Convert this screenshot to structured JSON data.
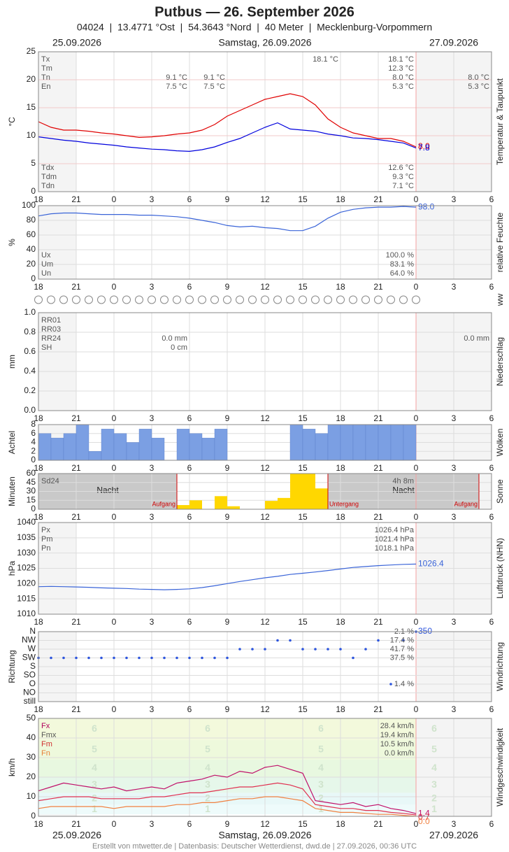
{
  "header": {
    "title": "Putbus  —  26. September 2026",
    "subtitle": "04024  |  13.4771 °Ost  |  54.3643 °Nord  |  40 Meter  |  Mecklenburg-Vorpommern",
    "dates": [
      "25.09.2026",
      "Samstag, 26.09.2026",
      "27.09.2026"
    ],
    "footer": "Erstellt von mtwetter.de | Datenbasis: Deutscher Wetterdienst, dwd.de | 27.09.2026, 00:36 UTC"
  },
  "x_axis": {
    "xlim": [
      0,
      36
    ],
    "xticks": [
      {
        "value": 0,
        "label": "18"
      },
      {
        "value": 3,
        "label": "21"
      },
      {
        "value": 6,
        "label": "0"
      },
      {
        "value": 9,
        "label": "3"
      },
      {
        "value": 12,
        "label": "6"
      },
      {
        "value": 15,
        "label": "9"
      },
      {
        "value": 18,
        "label": "12"
      },
      {
        "value": 21,
        "label": "15"
      },
      {
        "value": 24,
        "label": "18"
      },
      {
        "value": 27,
        "label": "21"
      },
      {
        "value": 30,
        "label": "0"
      },
      {
        "value": 33,
        "label": "3"
      },
      {
        "value": 36,
        "label": "6"
      }
    ]
  },
  "chart_data": [
    {
      "type": "line",
      "y_label": "°C",
      "right_label": "Temperatur & Taupunkt",
      "ylim": [
        0,
        25
      ],
      "yticks": [
        0,
        5,
        10,
        15,
        20,
        25
      ],
      "grid": true,
      "x": [
        0,
        1,
        2,
        3,
        4,
        5,
        6,
        7,
        8,
        9,
        10,
        11,
        12,
        13,
        14,
        15,
        16,
        17,
        18,
        19,
        20,
        21,
        22,
        23,
        24,
        25,
        26,
        27,
        28,
        29,
        30
      ],
      "series": [
        {
          "color": "#e00000",
          "end_label": "8.0",
          "values": [
            12.5,
            11.5,
            11.0,
            11.0,
            10.8,
            10.5,
            10.3,
            10.0,
            9.7,
            9.8,
            10.0,
            10.3,
            10.5,
            11.0,
            12.0,
            13.5,
            14.5,
            15.5,
            16.5,
            17.0,
            17.5,
            17.0,
            15.5,
            13.0,
            11.5,
            10.5,
            10.0,
            9.5,
            9.5,
            9.0,
            8.0
          ]
        },
        {
          "color": "#0000dd",
          "end_label": "7.8",
          "values": [
            9.8,
            9.5,
            9.2,
            9.0,
            8.7,
            8.5,
            8.3,
            8.0,
            7.8,
            7.6,
            7.5,
            7.3,
            7.2,
            7.5,
            8.0,
            8.8,
            9.5,
            10.5,
            11.5,
            12.3,
            11.2,
            11.0,
            10.8,
            10.3,
            10.0,
            9.6,
            9.5,
            9.3,
            9.0,
            8.7,
            7.8
          ]
        }
      ],
      "stat_labels": [
        "Tx",
        "Tm",
        "Tn",
        "En"
      ],
      "stat_values": [
        "18.1 °C",
        "12.3 °C",
        "8.0 °C",
        "5.3 °C"
      ],
      "prev_values": [
        "9.1 °C",
        "7.5 °C"
      ],
      "night_values": [
        "9.1 °C",
        "7.5 °C"
      ],
      "peak_values": [
        "18.1 °C"
      ],
      "next_values": [
        "8.0 °C",
        "5.3 °C"
      ],
      "dew_labels": [
        "Tdx",
        "Tdm",
        "Tdn"
      ],
      "dew_values": [
        "12.6 °C",
        "9.3 °C",
        "7.1 °C"
      ]
    },
    {
      "type": "line",
      "y_label": "%",
      "right_label": "relative Feuchte",
      "ylim": [
        0,
        100
      ],
      "yticks": [
        0,
        20,
        40,
        60,
        80,
        100
      ],
      "grid": true,
      "x": [
        0,
        1,
        2,
        3,
        4,
        5,
        6,
        7,
        8,
        9,
        10,
        11,
        12,
        13,
        14,
        15,
        16,
        17,
        18,
        19,
        20,
        21,
        22,
        23,
        24,
        25,
        26,
        27,
        28,
        29,
        30
      ],
      "series": [
        {
          "color": "#3a64d8",
          "end_label": "98.0",
          "values": [
            86,
            89,
            90,
            90,
            89,
            88,
            88,
            88,
            87,
            87,
            86,
            85,
            83,
            80,
            77,
            73,
            71,
            72,
            70,
            69,
            66,
            66,
            72,
            83,
            91,
            95,
            97,
            98,
            98,
            99,
            98
          ]
        }
      ],
      "stat_labels": [
        "Ux",
        "Um",
        "Un"
      ],
      "stat_values": [
        "100.0 %",
        "83.1 %",
        "64.0 %"
      ]
    },
    {
      "type": "symbols",
      "right_label": "ww"
    },
    {
      "type": "bar",
      "y_label": "mm",
      "right_label": "Niederschlag",
      "ylim": [
        0,
        1
      ],
      "yticks": [
        {
          "value": 0,
          "label": "0.0"
        },
        {
          "value": 0.2,
          "label": "0.2"
        },
        {
          "value": 0.4,
          "label": "0.4"
        },
        {
          "value": 0.6,
          "label": "0.6"
        },
        {
          "value": 0.8,
          "label": "0.8"
        },
        {
          "value": 1,
          "label": "1.0"
        }
      ],
      "grid": true,
      "stat_labels": [
        "RR01",
        "RR03",
        "RR24",
        "SH"
      ],
      "prev_values": [
        "0.0 mm",
        "0 cm"
      ],
      "next_values": [
        "0.0 mm"
      ]
    },
    {
      "type": "bar",
      "y_label": "Achtel",
      "right_label": "Wolken",
      "color": "#7b9fe3",
      "ylim": [
        0,
        8
      ],
      "yticks": [
        0,
        2,
        4,
        6,
        8
      ],
      "grid": true,
      "x": [
        0,
        1,
        2,
        3,
        4,
        5,
        6,
        7,
        8,
        9,
        10,
        11,
        12,
        13,
        14,
        15,
        16,
        17,
        18,
        19,
        20,
        21,
        22,
        23,
        24,
        25,
        26,
        27,
        28,
        29
      ],
      "values": [
        6,
        5,
        6,
        8,
        2,
        7,
        6,
        4,
        7,
        5,
        0,
        7,
        6,
        5,
        7,
        0,
        0,
        0,
        0,
        0,
        8,
        7,
        6,
        8,
        8,
        8,
        8,
        8,
        8,
        8
      ]
    },
    {
      "type": "bar",
      "y_label": "Minuten",
      "right_label": "Sonne",
      "color": "#ffd700",
      "ylim": [
        0,
        60
      ],
      "yticks": [
        0,
        15,
        30,
        45,
        60
      ],
      "grid": true,
      "x": [
        11,
        12,
        13,
        14,
        15,
        16,
        17,
        18,
        19,
        20,
        21,
        22
      ],
      "values": [
        7,
        15,
        0,
        22,
        5,
        0,
        0,
        14,
        19,
        60,
        60,
        35
      ],
      "events": [
        {
          "label": "Aufgang",
          "x": 11
        },
        {
          "label": "Untergang",
          "x": 23
        },
        {
          "label": "Aufgang",
          "x": 35
        }
      ],
      "night_labels": [
        "Nacht",
        "Nacht"
      ],
      "stat_labels": [
        "Sd24"
      ],
      "stat_values": [
        "4h 8m"
      ]
    },
    {
      "type": "line",
      "y_label": "hPa",
      "right_label": "Luftdruck (NHN)",
      "ylim": [
        1010,
        1040
      ],
      "yticks": [
        1010,
        1015,
        1020,
        1025,
        1030,
        1035,
        1040
      ],
      "grid": true,
      "x": [
        0,
        1,
        2,
        3,
        4,
        5,
        6,
        7,
        8,
        9,
        10,
        11,
        12,
        13,
        14,
        15,
        16,
        17,
        18,
        19,
        20,
        21,
        22,
        23,
        24,
        25,
        26,
        27,
        28,
        29,
        30
      ],
      "series": [
        {
          "color": "#3a64d8",
          "end_label": "1026.4",
          "values": [
            1019.0,
            1019.1,
            1019.0,
            1018.9,
            1018.8,
            1018.6,
            1018.5,
            1018.4,
            1018.2,
            1018.1,
            1018.0,
            1018.1,
            1018.3,
            1018.7,
            1019.3,
            1020.0,
            1020.7,
            1021.3,
            1021.9,
            1022.4,
            1023.0,
            1023.4,
            1023.8,
            1024.3,
            1024.8,
            1025.3,
            1025.6,
            1025.9,
            1026.1,
            1026.3,
            1026.4
          ]
        }
      ],
      "stat_labels": [
        "Px",
        "Pm",
        "Pn"
      ],
      "stat_values": [
        "1026.4 hPa",
        "1021.4 hPa",
        "1018.1 hPa"
      ]
    },
    {
      "type": "scatter",
      "y_label": "Richtung",
      "right_label": "Windrichtung",
      "color": "#2d55dd",
      "categories": [
        "N",
        "NW",
        "W",
        "SW",
        "S",
        "SO",
        "O",
        "NO",
        "still"
      ],
      "x": [
        0,
        1,
        2,
        3,
        4,
        5,
        6,
        7,
        8,
        9,
        10,
        11,
        12,
        13,
        14,
        15,
        16,
        17,
        18,
        19,
        20,
        21,
        22,
        23,
        24,
        25,
        26,
        27,
        28,
        29,
        30
      ],
      "values": [
        "SW",
        "SW",
        "SW",
        "SW",
        "SW",
        "SW",
        "SW",
        "SW",
        "SW",
        "SW",
        "SW",
        "SW",
        "SW",
        "SW",
        "SW",
        "SW",
        "W",
        "W",
        "W",
        "NW",
        "NW",
        "W",
        "W",
        "W",
        "W",
        "SW",
        "W",
        "NW",
        "O",
        "NW",
        "N"
      ],
      "end_label": "350",
      "shares": {
        "N": "2.1 %",
        "NW": "17.4 %",
        "W": "41.7 %",
        "SW": "37.5 %",
        "O": "1.4 %"
      }
    },
    {
      "type": "line",
      "y_label": "km/h",
      "right_label": "Windgeschwindigkeit",
      "ylim": [
        0,
        50
      ],
      "yticks": [
        0,
        10,
        20,
        30,
        40,
        50
      ],
      "grid": true,
      "x": [
        0,
        1,
        2,
        3,
        4,
        5,
        6,
        7,
        8,
        9,
        10,
        11,
        12,
        13,
        14,
        15,
        16,
        17,
        18,
        19,
        20,
        21,
        22,
        23,
        24,
        25,
        26,
        27,
        28,
        29,
        30
      ],
      "beaufort": {
        "levels": [
          1,
          2,
          3,
          4,
          5,
          6
        ],
        "edges": [
          1,
          6,
          12,
          20,
          29,
          39,
          50
        ],
        "colors": [
          "#eefbfb",
          "#e8f8f8",
          "#e6f7ea",
          "#e8f8e0",
          "#eef9dc",
          "#f3f9dc"
        ]
      },
      "series": [
        {
          "color": "#c0106a",
          "end_label": "1.4",
          "values": [
            13,
            15,
            17,
            16,
            15,
            14,
            15,
            13,
            14,
            15,
            14,
            17,
            18,
            19,
            21,
            20,
            23,
            22,
            25,
            26,
            24,
            22,
            8,
            7,
            6,
            7,
            5,
            6,
            4,
            3,
            1.4
          ]
        },
        {
          "color": "#e03050",
          "end_label": "0.7",
          "values": [
            8,
            9,
            10,
            10,
            10,
            9,
            9,
            9,
            9,
            10,
            10,
            11,
            12,
            12,
            13,
            14,
            15,
            15,
            16,
            17,
            16,
            14,
            6,
            5,
            4,
            4,
            3,
            3,
            2,
            1.5,
            0.7
          ]
        },
        {
          "color": "#f08040",
          "end_label": "0.0",
          "values": [
            4,
            5,
            5,
            5,
            5,
            5,
            4,
            5,
            5,
            5,
            5,
            6,
            6,
            7,
            7,
            8,
            9,
            9,
            10,
            10,
            9,
            8,
            4,
            3,
            2,
            2,
            1.5,
            1,
            1,
            0.5,
            0
          ]
        }
      ],
      "stat_labels": [
        "Fx",
        "Fmx",
        "Fm",
        "Fn"
      ],
      "stat_colors": [
        "#b0005a",
        "#555555",
        "#d03030",
        "#e8803a"
      ],
      "stat_values": [
        "28.4 km/h",
        "19.4 km/h",
        "10.5 km/h",
        "0.0 km/h"
      ]
    }
  ]
}
